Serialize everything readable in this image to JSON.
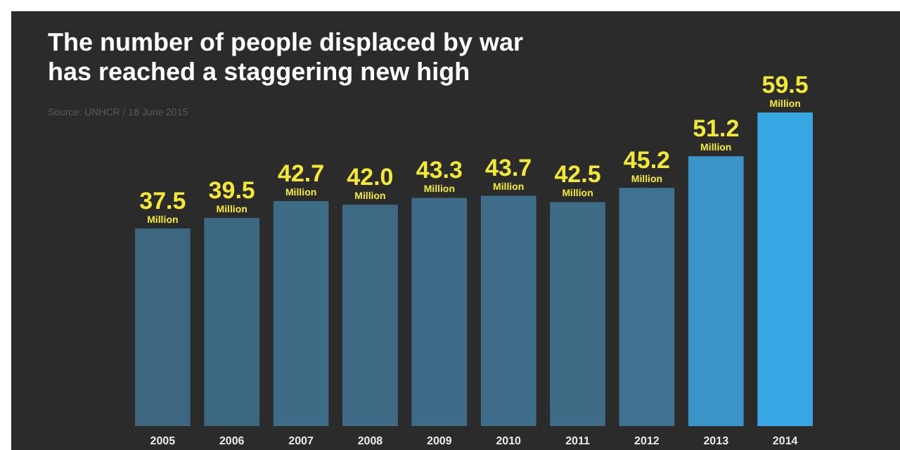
{
  "chart_data": {
    "type": "bar",
    "title": "The number of people displaced by war\nhas reached a staggering new high",
    "annotations": [
      "Source: UNHCR / 18 June 2015"
    ],
    "categories": [
      "2005",
      "2006",
      "2007",
      "2008",
      "2009",
      "2010",
      "2011",
      "2012",
      "2013",
      "2014"
    ],
    "values": [
      37.5,
      39.5,
      42.7,
      42.0,
      43.3,
      43.7,
      42.5,
      45.2,
      51.2,
      59.5
    ],
    "value_labels": [
      "37.5 Million",
      "39.5 Million",
      "42.7 Million",
      "42.0 Million",
      "43.3 Million",
      "43.7 Million",
      "42.5 Million",
      "45.2 Million",
      "51.2 Million",
      "59.5 Million"
    ],
    "colors": [
      "#3d6680",
      "#3d6882",
      "#3e6b86",
      "#3e6a85",
      "#3e6c88",
      "#3f6d89",
      "#3e6b86",
      "#3f7290",
      "#3a94c8",
      "#38a6e2"
    ]
  }
}
